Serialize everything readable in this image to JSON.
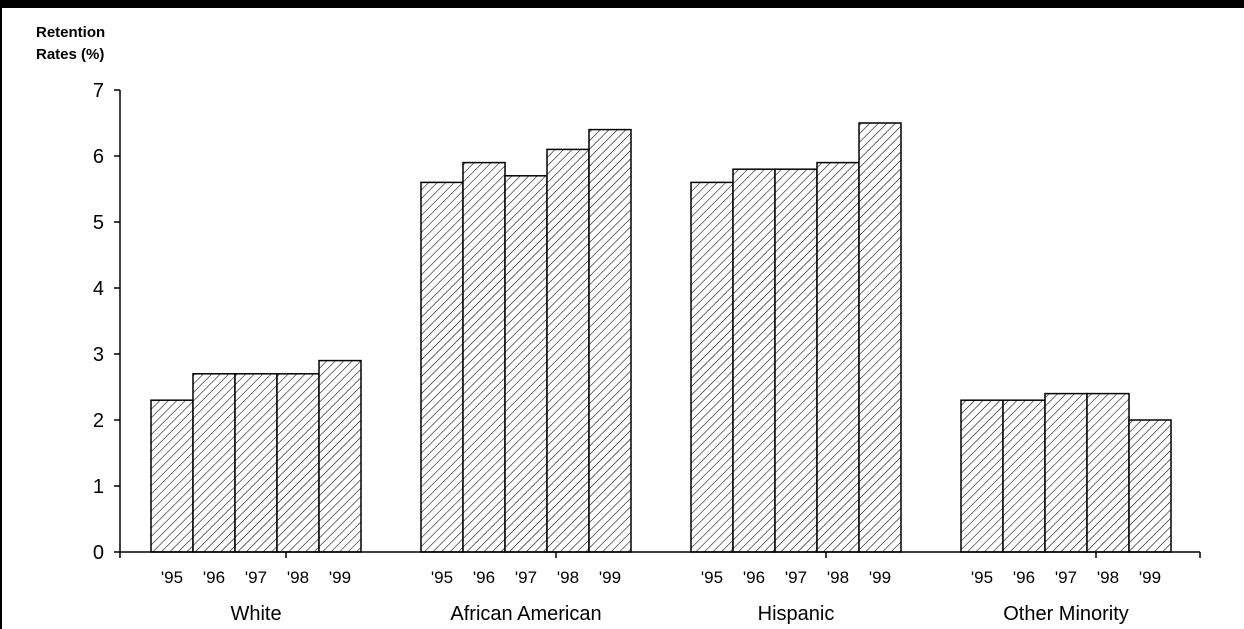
{
  "chart_data": {
    "type": "bar",
    "ylabel_lines": [
      "Retention",
      "Rates (%)"
    ],
    "ylim": [
      0,
      7
    ],
    "yticks": [
      0,
      1,
      2,
      3,
      4,
      5,
      6,
      7
    ],
    "categories": [
      "White",
      "African American",
      "Hispanic",
      "Other Minority"
    ],
    "years": [
      "'95",
      "'96",
      "'97",
      "'98",
      "'99"
    ],
    "series": [
      {
        "name": "'95",
        "values": [
          2.3,
          5.6,
          5.6,
          2.3
        ]
      },
      {
        "name": "'96",
        "values": [
          2.7,
          5.9,
          5.8,
          2.3
        ]
      },
      {
        "name": "'97",
        "values": [
          2.7,
          5.7,
          5.8,
          2.4
        ]
      },
      {
        "name": "'98",
        "values": [
          2.7,
          6.1,
          5.9,
          2.4
        ]
      },
      {
        "name": "'99",
        "values": [
          2.9,
          6.4,
          6.5,
          2.0
        ]
      }
    ],
    "bar_pattern": "diagonal-hatch",
    "grid": false,
    "legend": "none"
  }
}
